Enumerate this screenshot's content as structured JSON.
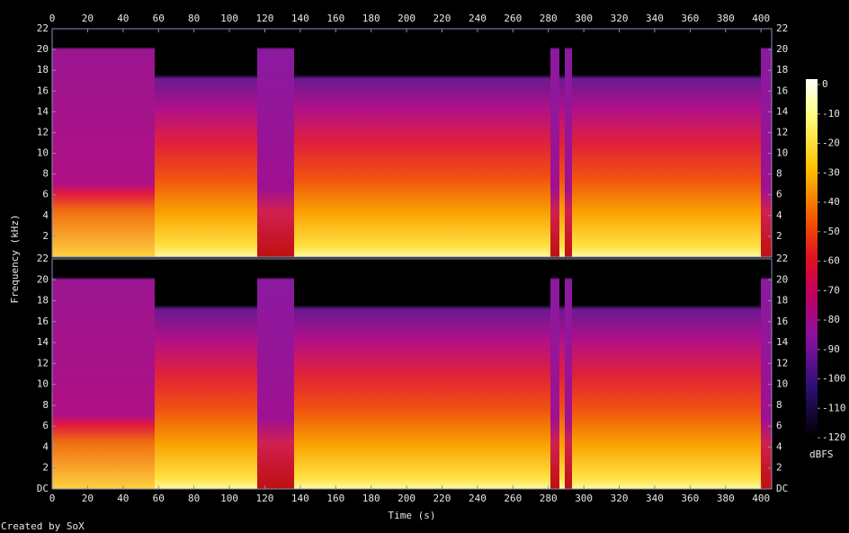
{
  "chart_data": {
    "type": "spectrogram",
    "xlabel": "Time (s)",
    "ylabel": "Frequency (kHz)",
    "xlim": [
      0,
      406
    ],
    "xticks": [
      0,
      20,
      40,
      60,
      80,
      100,
      120,
      140,
      160,
      180,
      200,
      220,
      240,
      260,
      280,
      300,
      320,
      340,
      360,
      380,
      400
    ],
    "ylim": [
      0,
      22
    ],
    "yticks": [
      {
        "value": 0,
        "label": "DC"
      },
      2,
      4,
      6,
      8,
      10,
      12,
      14,
      16,
      18,
      20,
      22
    ],
    "colorbar": {
      "label": "dBFS",
      "lim": [
        -120,
        0
      ],
      "ticks": [
        0,
        -10,
        -20,
        -30,
        -40,
        -50,
        -60,
        -70,
        -80,
        -90,
        -100,
        -110,
        -120
      ]
    }
  },
  "credit": "Created by SoX"
}
